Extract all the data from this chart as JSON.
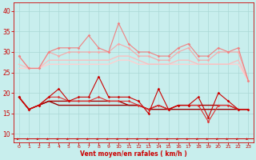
{
  "x": [
    0,
    1,
    2,
    3,
    4,
    5,
    6,
    7,
    8,
    9,
    10,
    11,
    12,
    13,
    14,
    15,
    16,
    17,
    18,
    19,
    20,
    21,
    22,
    23
  ],
  "rafales_spiky": [
    29,
    26,
    26,
    30,
    31,
    31,
    31,
    34,
    31,
    30,
    37,
    32,
    30,
    30,
    29,
    29,
    31,
    32,
    29,
    29,
    31,
    30,
    31,
    23
  ],
  "rafales_mid1": [
    29,
    26,
    26,
    30,
    29,
    30,
    30,
    30,
    30,
    30,
    32,
    31,
    29,
    29,
    28,
    28,
    30,
    31,
    28,
    28,
    30,
    30,
    30,
    23
  ],
  "rafales_smooth1": [
    27,
    26,
    26,
    28,
    28,
    28,
    28,
    28,
    28,
    28,
    29,
    29,
    28,
    27,
    27,
    27,
    28,
    28,
    27,
    27,
    27,
    27,
    28,
    23
  ],
  "rafales_smooth2": [
    26,
    26,
    26,
    27,
    27,
    27,
    27,
    27,
    27,
    27,
    28,
    28,
    27,
    27,
    27,
    27,
    27,
    27,
    27,
    27,
    27,
    27,
    27,
    23
  ],
  "vent_spiky": [
    19,
    16,
    17,
    19,
    21,
    18,
    19,
    19,
    24,
    19,
    19,
    19,
    18,
    15,
    21,
    16,
    17,
    17,
    19,
    14,
    20,
    18,
    16,
    16
  ],
  "vent_mid": [
    19,
    16,
    17,
    19,
    19,
    18,
    18,
    18,
    19,
    18,
    18,
    18,
    17,
    16,
    17,
    16,
    17,
    17,
    17,
    13,
    17,
    17,
    16,
    16
  ],
  "vent_smooth1": [
    19,
    16,
    17,
    18,
    18,
    18,
    18,
    18,
    18,
    18,
    18,
    17,
    17,
    16,
    17,
    16,
    17,
    17,
    17,
    17,
    17,
    17,
    16,
    16
  ],
  "vent_smooth2": [
    19,
    16,
    17,
    18,
    17,
    17,
    17,
    17,
    17,
    17,
    17,
    17,
    17,
    16,
    16,
    16,
    16,
    16,
    16,
    16,
    16,
    16,
    16,
    16
  ],
  "bg_color": "#c8eeed",
  "grid_color": "#aad8d6",
  "c_light1": "#f7a8a8",
  "c_light2": "#f08080",
  "c_light3": "#f9c0c0",
  "c_light4": "#fdd0d0",
  "c_dark1": "#cc0000",
  "c_dark2": "#dd3333",
  "c_dark3": "#aa0000",
  "c_dark4": "#990000",
  "xlabel": "Vent moyen/en rafales ( km/h )",
  "xlim": [
    -0.5,
    23.5
  ],
  "ylim": [
    8,
    42
  ],
  "yticks": [
    10,
    15,
    20,
    25,
    30,
    35,
    40
  ],
  "xticks": [
    0,
    1,
    2,
    3,
    4,
    5,
    6,
    7,
    8,
    9,
    10,
    11,
    12,
    13,
    14,
    15,
    16,
    17,
    18,
    19,
    20,
    21,
    22,
    23
  ]
}
